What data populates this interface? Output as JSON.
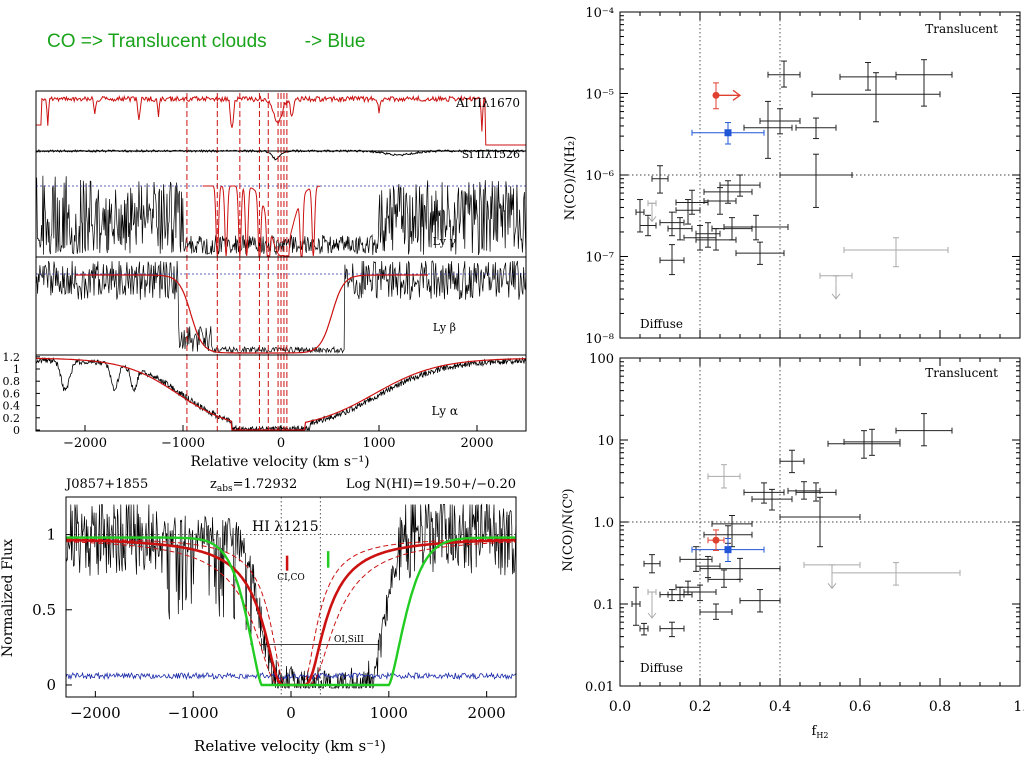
{
  "headline": {
    "left": "CO => Translucent clouds",
    "right": "-> Blue"
  },
  "colors": {
    "red": "#cc1111",
    "green": "#22cc22",
    "blue": "#1a2aa8",
    "blue_marker": "#1f56d6",
    "red_marker": "#e04030",
    "gray": "#aaaaaa"
  },
  "chart_data": [
    {
      "type": "line",
      "panel": "stacked-velocity-profiles",
      "xlabel": "Relative velocity (km s⁻¹)",
      "xlim": [
        -2500,
        2500
      ],
      "x_ticks": [
        "−2000",
        "−1000",
        "0",
        "1000",
        "2000"
      ],
      "y_ticks": [
        "0",
        "0.2",
        "0.4",
        "0.6",
        "0.8",
        "1",
        "1.2"
      ],
      "ylim": [
        0,
        1.2
      ],
      "series": [
        {
          "name": "Al IIλ1670",
          "color": "#cc1111"
        },
        {
          "name": "Si IIλ1526",
          "color": "#000000"
        },
        {
          "name": "Ly γ",
          "color": "#000000"
        },
        {
          "name": "Ly β",
          "color": "#000000"
        },
        {
          "name": "Ly α",
          "color": "#000000"
        }
      ],
      "velocity_markers": [
        -960,
        -650,
        -420,
        -220,
        -130,
        -30,
        0,
        30,
        60
      ]
    },
    {
      "type": "line",
      "panel": "HI-1215-profile",
      "header_left": "J0857+1855",
      "header_mid": "z",
      "header_mid_sub": "abs",
      "header_mid_value": "=1.72932",
      "header_right": "Log N(HI)=19.50+/−0.20",
      "annotation": "HI λ1215",
      "label_ci": "CI,CO",
      "label_oi": "OI,SiII",
      "xlabel": "Relative velocity (km s⁻¹)",
      "ylabel": "Normalized Flux",
      "xlim": [
        -2300,
        2300
      ],
      "ylim": [
        -0.08,
        1.25
      ],
      "x_ticks": [
        "−2000",
        "−1000",
        "0",
        "1000",
        "2000"
      ],
      "y_ticks": [
        "0",
        "0.5",
        "1"
      ],
      "series": [
        {
          "color": "#000000"
        },
        {
          "color": "#cc1111"
        },
        {
          "color": "#22cc22"
        },
        {
          "color": "#1a2aa8"
        }
      ]
    },
    {
      "type": "scatter",
      "panel": "CO-H2-ratio",
      "ylabel": "N(CO)/N(H₂)",
      "yscale": "log",
      "xlim": [
        0,
        1
      ],
      "ylim": [
        1e-08,
        0.0001
      ],
      "y_ticks": [
        "10⁻⁸",
        "10⁻⁷",
        "10⁻⁶",
        "10⁻⁵",
        "10⁻⁴"
      ],
      "label_top": "Translucent",
      "label_bottom": "Diffuse",
      "vlines": [
        0.2,
        0.4
      ],
      "hlines": [
        1e-06
      ],
      "points": [
        {
          "x": 0.05,
          "y": 3.5e-07,
          "xe": 0.01,
          "ylo": 2e-07,
          "yhi": 5e-07,
          "c": "k"
        },
        {
          "x": 0.07,
          "y": 2.4e-07,
          "xe": 0.02,
          "ylo": 1.8e-07,
          "yhi": 3.2e-07,
          "c": "k"
        },
        {
          "x": 0.1,
          "y": 9e-07,
          "xe": 0.02,
          "ylo": 6e-07,
          "yhi": 1.3e-06,
          "c": "k"
        },
        {
          "x": 0.13,
          "y": 2.6e-07,
          "xe": 0.03,
          "ylo": 1.8e-07,
          "yhi": 3.5e-07,
          "c": "k"
        },
        {
          "x": 0.15,
          "y": 2.2e-07,
          "xe": 0.03,
          "ylo": 1.6e-07,
          "yhi": 3e-07,
          "c": "k"
        },
        {
          "x": 0.17,
          "y": 3.7e-07,
          "xe": 0.03,
          "ylo": 2.5e-07,
          "yhi": 5e-07,
          "c": "k"
        },
        {
          "x": 0.18,
          "y": 4.6e-07,
          "xe": 0.04,
          "ylo": 3.3e-07,
          "yhi": 6.5e-07,
          "c": "k"
        },
        {
          "x": 0.2,
          "y": 1.7e-07,
          "xe": 0.04,
          "ylo": 1.2e-07,
          "yhi": 2.4e-07,
          "c": "k"
        },
        {
          "x": 0.22,
          "y": 1.9e-07,
          "xe": 0.03,
          "ylo": 1.3e-07,
          "yhi": 2.6e-07,
          "c": "k"
        },
        {
          "x": 0.24,
          "y": 1.6e-07,
          "xe": 0.05,
          "ylo": 1.2e-07,
          "yhi": 2.2e-07,
          "c": "k"
        },
        {
          "x": 0.25,
          "y": 4.8e-07,
          "xe": 0.04,
          "ylo": 3.3e-07,
          "yhi": 7e-07,
          "c": "k"
        },
        {
          "x": 0.27,
          "y": 6.2e-07,
          "xe": 0.06,
          "ylo": 4.5e-07,
          "yhi": 8.5e-07,
          "c": "k"
        },
        {
          "x": 0.28,
          "y": 2.2e-07,
          "xe": 0.05,
          "ylo": 1.6e-07,
          "yhi": 3e-07,
          "c": "k"
        },
        {
          "x": 0.3,
          "y": 7.5e-07,
          "xe": 0.05,
          "ylo": 5.5e-07,
          "yhi": 1e-06,
          "c": "k"
        },
        {
          "x": 0.34,
          "y": 2.3e-07,
          "xe": 0.08,
          "ylo": 1.6e-07,
          "yhi": 3.2e-07,
          "c": "k"
        },
        {
          "x": 0.35,
          "y": 1.1e-07,
          "xe": 0.06,
          "ylo": 8e-08,
          "yhi": 1.5e-07,
          "c": "k"
        },
        {
          "x": 0.13,
          "y": 9e-08,
          "xe": 0.03,
          "ylo": 6e-08,
          "yhi": 1.4e-07,
          "c": "k"
        },
        {
          "x": 0.37,
          "y": 3.8e-06,
          "xe": 0.06,
          "ylo": 1.6e-06,
          "yhi": 8e-06,
          "c": "k"
        },
        {
          "x": 0.4,
          "y": 4.6e-06,
          "xe": 0.05,
          "ylo": 3.2e-06,
          "yhi": 6.5e-06,
          "c": "k"
        },
        {
          "x": 0.41,
          "y": 1.7e-05,
          "xe": 0.04,
          "ylo": 1.2e-05,
          "yhi": 2.5e-05,
          "c": "k"
        },
        {
          "x": 0.49,
          "y": 3.8e-06,
          "xe": 0.05,
          "ylo": 2.8e-06,
          "yhi": 5e-06,
          "c": "k"
        },
        {
          "x": 0.62,
          "y": 1.6e-05,
          "xe": 0.07,
          "ylo": 1.1e-05,
          "yhi": 2.4e-05,
          "c": "k"
        },
        {
          "x": 0.64,
          "y": 9.8e-06,
          "xe": 0.16,
          "ylo": 4.5e-06,
          "yhi": 1.8e-05,
          "c": "k"
        },
        {
          "x": 0.76,
          "y": 1.7e-05,
          "xe": 0.07,
          "ylo": 7e-06,
          "yhi": 2.6e-05,
          "c": "k"
        },
        {
          "x": 0.49,
          "y": 1e-06,
          "xe": 0.09,
          "ylo": 4e-07,
          "yhi": 1.8e-06,
          "c": "k"
        },
        {
          "x": 0.27,
          "y": 3.3e-06,
          "xe": 0.09,
          "ylo": 2.4e-06,
          "yhi": 4.4e-06,
          "c": "b"
        },
        {
          "x": 0.24,
          "y": 9.5e-06,
          "xe": 0.0,
          "ylo": 6.5e-06,
          "yhi": 1.35e-05,
          "c": "r",
          "arrow": "right"
        },
        {
          "x": 0.69,
          "y": 1.2e-07,
          "xe": 0.13,
          "ylo": 7.5e-08,
          "yhi": 1.7e-07,
          "c": "g"
        },
        {
          "x": 0.54,
          "y": 5.8e-08,
          "xe": 0.04,
          "ylo": 4.5e-08,
          "yhi": 5.8e-08,
          "c": "g",
          "arrow": "down"
        },
        {
          "x": 0.08,
          "y": 4.5e-07,
          "xe": 0.01,
          "ylo": 4e-07,
          "yhi": 4.5e-07,
          "c": "g",
          "arrow": "down"
        }
      ]
    },
    {
      "type": "scatter",
      "panel": "CO-C0-ratio",
      "ylabel": "N(CO)/N(C⁰)",
      "xlabel": "f",
      "xlabel_sub": "H2",
      "yscale": "log",
      "xlim": [
        0,
        1
      ],
      "ylim": [
        0.01,
        100
      ],
      "x_ticks": [
        "0.0",
        "0.2",
        "0.4",
        "0.6",
        "0.8",
        "1."
      ],
      "y_ticks": [
        "0.01",
        "0.1",
        "1.0",
        "10",
        "100"
      ],
      "label_top": "Translucent",
      "label_bottom": "Diffuse",
      "vlines": [
        0.2,
        0.4
      ],
      "hlines": [
        1.0
      ],
      "points": [
        {
          "x": 0.04,
          "y": 0.1,
          "xe": 0.01,
          "ylo": 0.055,
          "yhi": 0.16,
          "c": "k"
        },
        {
          "x": 0.06,
          "y": 0.05,
          "xe": 0.01,
          "ylo": 0.042,
          "yhi": 0.058,
          "c": "k"
        },
        {
          "x": 0.08,
          "y": 0.31,
          "xe": 0.02,
          "ylo": 0.24,
          "yhi": 0.4,
          "c": "k"
        },
        {
          "x": 0.13,
          "y": 0.05,
          "xe": 0.03,
          "ylo": 0.04,
          "yhi": 0.06,
          "c": "k"
        },
        {
          "x": 0.13,
          "y": 0.13,
          "xe": 0.03,
          "ylo": 0.11,
          "yhi": 0.15,
          "c": "k"
        },
        {
          "x": 0.15,
          "y": 0.13,
          "xe": 0.03,
          "ylo": 0.11,
          "yhi": 0.16,
          "c": "k"
        },
        {
          "x": 0.17,
          "y": 0.16,
          "xe": 0.03,
          "ylo": 0.13,
          "yhi": 0.19,
          "c": "k"
        },
        {
          "x": 0.19,
          "y": 0.35,
          "xe": 0.04,
          "ylo": 0.25,
          "yhi": 0.5,
          "c": "k"
        },
        {
          "x": 0.2,
          "y": 0.14,
          "xe": 0.04,
          "ylo": 0.11,
          "yhi": 0.17,
          "c": "k"
        },
        {
          "x": 0.22,
          "y": 0.29,
          "xe": 0.03,
          "ylo": 0.21,
          "yhi": 0.38,
          "c": "k"
        },
        {
          "x": 0.24,
          "y": 0.08,
          "xe": 0.04,
          "ylo": 0.065,
          "yhi": 0.1,
          "c": "k"
        },
        {
          "x": 0.26,
          "y": 0.2,
          "xe": 0.04,
          "ylo": 0.16,
          "yhi": 0.26,
          "c": "k"
        },
        {
          "x": 0.27,
          "y": 0.7,
          "xe": 0.06,
          "ylo": 0.55,
          "yhi": 0.9,
          "c": "k"
        },
        {
          "x": 0.28,
          "y": 0.95,
          "xe": 0.05,
          "ylo": 0.5,
          "yhi": 1.2,
          "c": "k"
        },
        {
          "x": 0.3,
          "y": 0.27,
          "xe": 0.1,
          "ylo": 0.2,
          "yhi": 0.36,
          "c": "k"
        },
        {
          "x": 0.35,
          "y": 0.11,
          "xe": 0.05,
          "ylo": 0.08,
          "yhi": 0.15,
          "c": "k"
        },
        {
          "x": 0.36,
          "y": 2.3,
          "xe": 0.05,
          "ylo": 1.7,
          "yhi": 3.0,
          "c": "k"
        },
        {
          "x": 0.38,
          "y": 1.9,
          "xe": 0.05,
          "ylo": 1.4,
          "yhi": 2.5,
          "c": "k"
        },
        {
          "x": 0.43,
          "y": 5.5,
          "xe": 0.03,
          "ylo": 4.0,
          "yhi": 7.5,
          "c": "k"
        },
        {
          "x": 0.46,
          "y": 2.4,
          "xe": 0.04,
          "ylo": 1.9,
          "yhi": 3.1,
          "c": "k"
        },
        {
          "x": 0.49,
          "y": 2.3,
          "xe": 0.05,
          "ylo": 1.8,
          "yhi": 3.0,
          "c": "k"
        },
        {
          "x": 0.5,
          "y": 1.15,
          "xe": 0.1,
          "ylo": 0.5,
          "yhi": 2.0,
          "c": "k"
        },
        {
          "x": 0.61,
          "y": 9.0,
          "xe": 0.09,
          "ylo": 6.0,
          "yhi": 13.0,
          "c": "k"
        },
        {
          "x": 0.63,
          "y": 9.5,
          "xe": 0.07,
          "ylo": 6.5,
          "yhi": 13.5,
          "c": "k"
        },
        {
          "x": 0.76,
          "y": 13.0,
          "xe": 0.07,
          "ylo": 8.5,
          "yhi": 21.0,
          "c": "k"
        },
        {
          "x": 0.27,
          "y": 0.46,
          "xe": 0.09,
          "ylo": 0.33,
          "yhi": 0.63,
          "c": "b"
        },
        {
          "x": 0.24,
          "y": 0.6,
          "xe": 0.02,
          "ylo": 0.45,
          "yhi": 0.8,
          "c": "r"
        },
        {
          "x": 0.26,
          "y": 3.6,
          "xe": 0.04,
          "ylo": 2.6,
          "yhi": 5.0,
          "c": "g"
        },
        {
          "x": 0.53,
          "y": 0.3,
          "xe": 0.07,
          "ylo": 0.23,
          "yhi": 0.3,
          "c": "g",
          "arrow": "down"
        },
        {
          "x": 0.69,
          "y": 0.24,
          "xe": 0.16,
          "ylo": 0.17,
          "yhi": 0.32,
          "c": "g"
        },
        {
          "x": 0.08,
          "y": 0.14,
          "xe": 0.01,
          "ylo": 0.1,
          "yhi": 0.14,
          "c": "g",
          "arrow": "down"
        }
      ]
    }
  ]
}
